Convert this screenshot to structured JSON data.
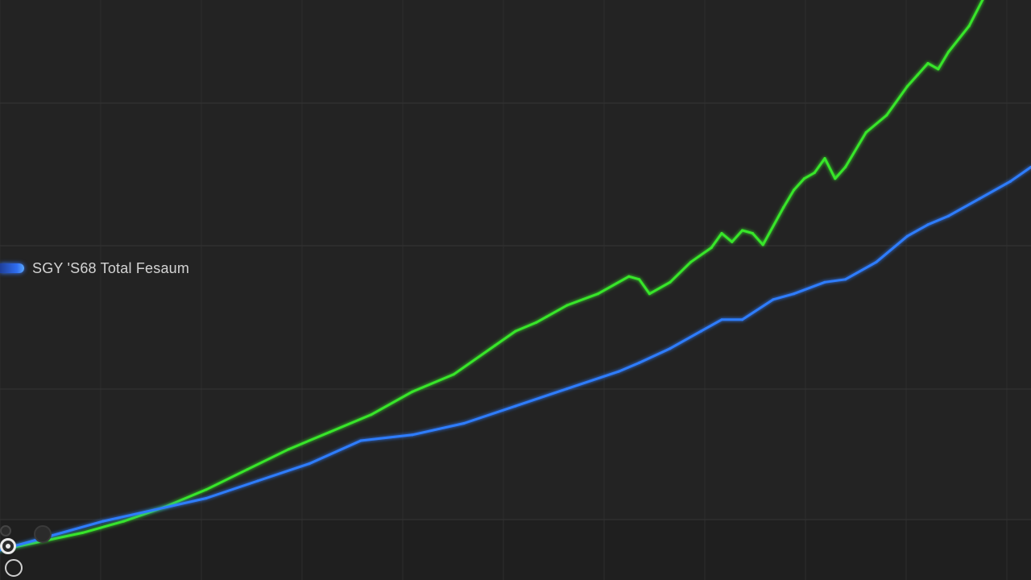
{
  "chart_data": {
    "type": "line",
    "title": "",
    "xlabel": "",
    "ylabel": "",
    "grid": true,
    "legend_position": "middle-left",
    "legend": [
      {
        "label": "SGY 'S68 Total Fesaum",
        "color": "#2f7dff"
      }
    ],
    "xlim": [
      0,
      100
    ],
    "ylim": [
      0,
      100
    ],
    "series": [
      {
        "color": "#39e629",
        "x": [
          0,
          4,
          8,
          12,
          16,
          20,
          24,
          28,
          32,
          36,
          40,
          44,
          48,
          50,
          52,
          53,
          55,
          58,
          61,
          62,
          63,
          65,
          67,
          69,
          70,
          71,
          72,
          73,
          74,
          76,
          77,
          78,
          79,
          80,
          81,
          82,
          84,
          86,
          88,
          89,
          90,
          91,
          92,
          94,
          95.3
        ],
        "y": [
          4.5,
          6,
          7.5,
          9.5,
          12,
          15,
          18.5,
          22,
          25,
          28,
          32,
          35,
          40,
          42.5,
          44,
          45,
          47,
          49,
          52,
          51.5,
          49,
          51,
          54.5,
          57,
          59.5,
          58,
          60,
          59.5,
          57.5,
          64,
          67,
          69,
          70,
          72.5,
          69,
          71,
          77,
          80,
          85,
          87,
          89,
          88,
          91,
          95.5,
          100
        ]
      },
      {
        "color": "#2f7dff",
        "x": [
          0,
          5,
          10,
          15,
          20,
          25,
          30,
          35,
          40,
          45,
          50,
          55,
          60,
          62,
          65,
          68,
          70,
          72,
          75,
          77,
          80,
          82,
          85,
          88,
          90,
          92,
          95,
          98,
          100
        ],
        "y": [
          4.5,
          7,
          9.5,
          11.5,
          13.5,
          16.5,
          19.5,
          23.5,
          24.5,
          26.5,
          29.5,
          32.5,
          35.5,
          37,
          39.5,
          42.5,
          44.5,
          44.5,
          48,
          49,
          51,
          51.5,
          54.5,
          59,
          61,
          62.5,
          65.5,
          68.5,
          71
        ]
      }
    ]
  },
  "legend": {
    "label": "SGY 'S68 Total Fesaum"
  },
  "controls": {
    "a": "radio-icon",
    "b": "circle-icon",
    "c": "circle-icon",
    "d": "circle-icon"
  }
}
